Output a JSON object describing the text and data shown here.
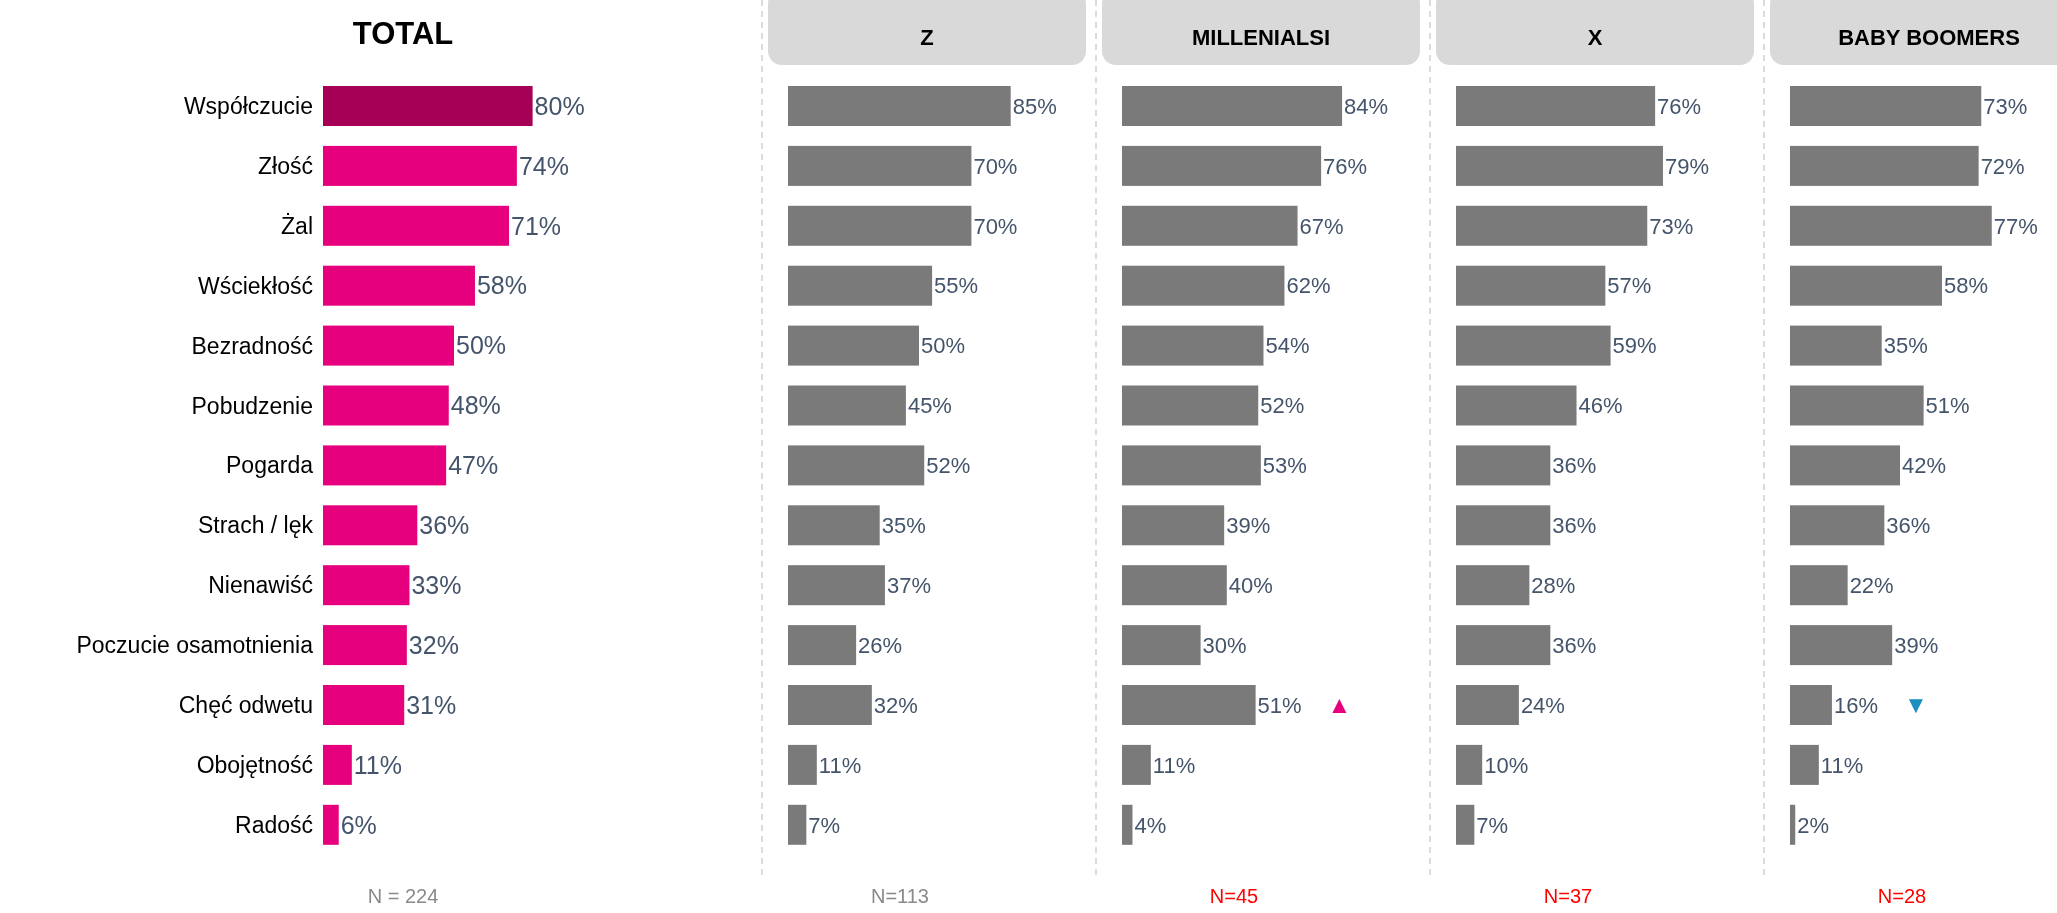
{
  "chart_data": [
    {
      "type": "bar",
      "orientation": "horizontal",
      "title": "TOTAL",
      "categories": [
        "Współczucie",
        "Złość",
        "Żal",
        "Wściekłość",
        "Bezradność",
        "Pobudzenie",
        "Pogarda",
        "Strach / lęk",
        "Nienawiść",
        "Poczucie osamotnienia",
        "Chęć odwetu",
        "Obojętność",
        "Radość"
      ],
      "values": [
        80,
        74,
        71,
        58,
        50,
        48,
        47,
        36,
        33,
        32,
        31,
        11,
        6
      ],
      "colors": [
        "#a50056",
        "#e6007e",
        "#e6007e",
        "#e6007e",
        "#e6007e",
        "#e6007e",
        "#e6007e",
        "#e6007e",
        "#e6007e",
        "#e6007e",
        "#e6007e",
        "#e6007e",
        "#e6007e"
      ],
      "value_labels": [
        "80%",
        "74%",
        "71%",
        "58%",
        "50%",
        "48%",
        "47%",
        "36%",
        "33%",
        "32%",
        "31%",
        "11%",
        "6%"
      ],
      "annotations": [
        "N = 224"
      ]
    },
    {
      "type": "bar",
      "orientation": "horizontal",
      "title": "Z",
      "tick_labels": false,
      "categories": [
        "Współczucie",
        "Złość",
        "Żal",
        "Wściekłość",
        "Bezradność",
        "Pobudzenie",
        "Pogarda",
        "Strach / lęk",
        "Nienawiść",
        "Poczucie osamotnienia",
        "Chęć odwetu",
        "Obojętność",
        "Radość"
      ],
      "values": [
        85,
        70,
        70,
        55,
        50,
        45,
        52,
        35,
        37,
        26,
        32,
        11,
        7
      ],
      "color": "#7a7a7a",
      "value_labels": [
        "85%",
        "70%",
        "70%",
        "55%",
        "50%",
        "45%",
        "52%",
        "35%",
        "37%",
        "26%",
        "32%",
        "11%",
        "7%"
      ],
      "annotations": [
        "N=113"
      ]
    },
    {
      "type": "bar",
      "orientation": "horizontal",
      "title": "MILLENIALSI",
      "tick_labels": false,
      "categories": [
        "Współczucie",
        "Złość",
        "Żal",
        "Wściekłość",
        "Bezradność",
        "Pobudzenie",
        "Pogarda",
        "Strach / lęk",
        "Nienawiść",
        "Poczucie osamotnienia",
        "Chęć odwetu",
        "Obojętność",
        "Radość"
      ],
      "values": [
        84,
        76,
        67,
        62,
        54,
        52,
        53,
        39,
        40,
        30,
        51,
        11,
        4
      ],
      "color": "#7a7a7a",
      "value_labels": [
        "84%",
        "76%",
        "67%",
        "62%",
        "54%",
        "52%",
        "53%",
        "39%",
        "40%",
        "30%",
        "51%",
        "11%",
        "4%"
      ],
      "annotations": [
        "N=45",
        {
          "text": "▲",
          "x": 51,
          "y": "Chęć odwetu"
        }
      ]
    },
    {
      "type": "bar",
      "orientation": "horizontal",
      "title": "X",
      "tick_labels": false,
      "categories": [
        "Współczucie",
        "Złość",
        "Żal",
        "Wściekłość",
        "Bezradność",
        "Pobudzenie",
        "Pogarda",
        "Strach / lęk",
        "Nienawiść",
        "Poczucie osamotnienia",
        "Chęć odwetu",
        "Obojętność",
        "Radość"
      ],
      "values": [
        76,
        79,
        73,
        57,
        59,
        46,
        36,
        36,
        28,
        36,
        24,
        10,
        7
      ],
      "color": "#7a7a7a",
      "value_labels": [
        "76%",
        "79%",
        "73%",
        "57%",
        "59%",
        "46%",
        "36%",
        "36%",
        "28%",
        "36%",
        "24%",
        "10%",
        "7%"
      ],
      "annotations": [
        "N=37"
      ]
    },
    {
      "type": "bar",
      "orientation": "horizontal",
      "title": "BABY BOOMERS",
      "tick_labels": false,
      "categories": [
        "Współczucie",
        "Złość",
        "Żal",
        "Wściekłość",
        "Bezradność",
        "Pobudzenie",
        "Pogarda",
        "Strach / lęk",
        "Nienawiść",
        "Poczucie osamotnienia",
        "Chęć odwetu",
        "Obojętność",
        "Radość"
      ],
      "values": [
        73,
        72,
        77,
        58,
        35,
        51,
        42,
        36,
        22,
        39,
        16,
        11,
        2
      ],
      "color": "#7a7a7a",
      "value_labels": [
        "73%",
        "72%",
        "77%",
        "58%",
        "35%",
        "51%",
        "42%",
        "36%",
        "22%",
        "39%",
        "16%",
        "11%",
        "2%"
      ],
      "annotations": [
        "N=28",
        {
          "text": "▼",
          "x": 16,
          "y": "Chęć odwetu"
        }
      ]
    }
  ]
}
